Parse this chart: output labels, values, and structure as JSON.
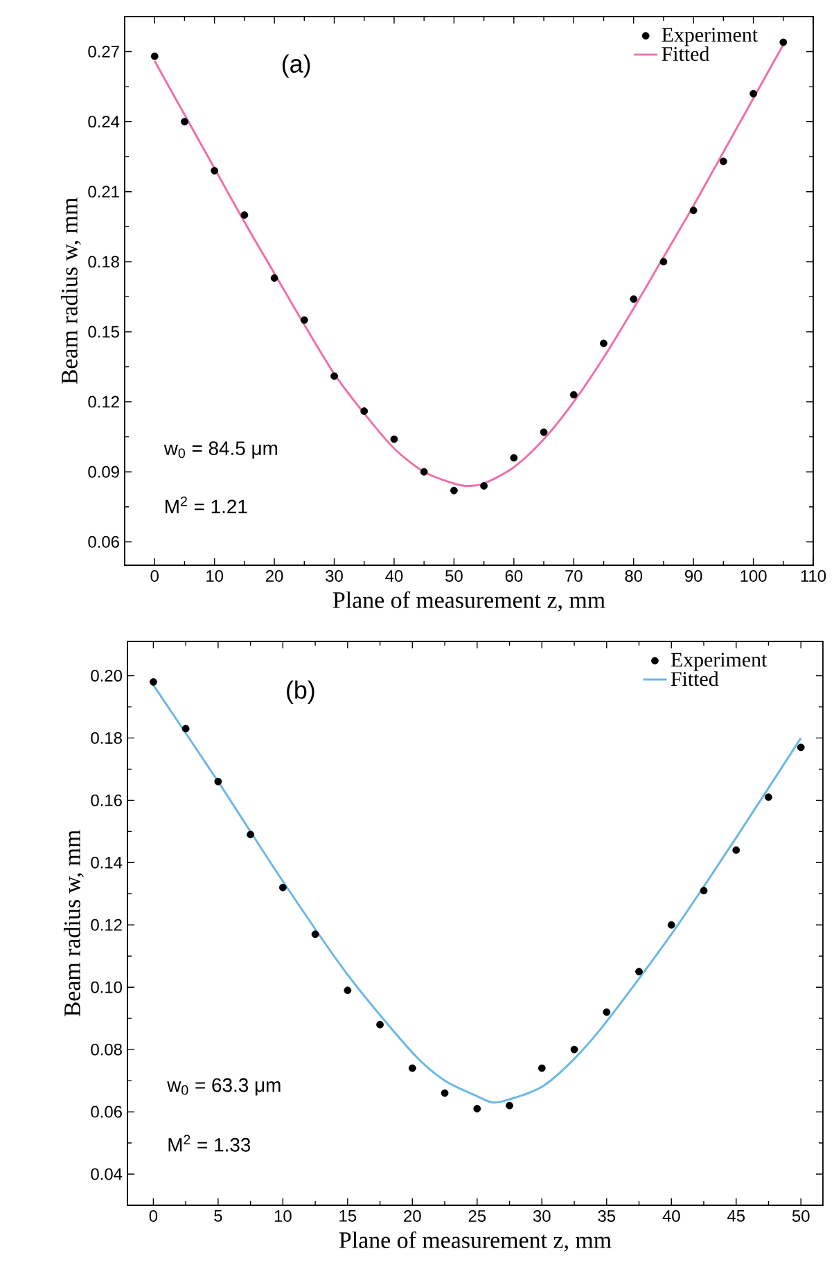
{
  "chart_data": [
    {
      "type": "scatter",
      "xlabel": "Plane of measurement  z, mm",
      "ylabel": "Beam radius w, mm",
      "xlim": [
        -5,
        110
      ],
      "ylim": [
        0.05,
        0.285
      ],
      "xticks": [
        0,
        10,
        20,
        30,
        40,
        50,
        60,
        70,
        80,
        90,
        100,
        110
      ],
      "yticks": [
        {
          "value": 0.06,
          "label": "0.06"
        },
        {
          "value": 0.09,
          "label": "0.09"
        },
        {
          "value": 0.12,
          "label": "0.12"
        },
        {
          "value": 0.15,
          "label": "0.15"
        },
        {
          "value": 0.18,
          "label": "0.18"
        },
        {
          "value": 0.21,
          "label": "0.21"
        },
        {
          "value": 0.24,
          "label": "0.24"
        },
        {
          "value": 0.27,
          "label": "0.27"
        }
      ],
      "legend": "top right",
      "annotations": [
        "(a)",
        "w$_{0}$ = 84.5 μm",
        "M$^{2}$ = 1.21"
      ],
      "series": [
        {
          "name": "Experiment",
          "type": "scatter",
          "marker": "circle",
          "color": "#000000",
          "x": [
            0,
            5,
            10,
            15,
            20,
            25,
            30,
            35,
            40,
            45,
            50,
            55,
            60,
            65,
            70,
            75,
            80,
            85,
            90,
            95,
            100,
            105
          ],
          "values": [
            0.268,
            0.24,
            0.219,
            0.2,
            0.173,
            0.155,
            0.131,
            0.116,
            0.104,
            0.09,
            0.082,
            0.084,
            0.096,
            0.107,
            0.123,
            0.145,
            0.164,
            0.18,
            0.202,
            0.223,
            0.252,
            0.274
          ]
        },
        {
          "name": "Fitted",
          "type": "line",
          "marker": "none",
          "color": "#ef6fab",
          "x": [
            0,
            5,
            10,
            15,
            20,
            25,
            30,
            35,
            40,
            45,
            50,
            52,
            55,
            60,
            65,
            70,
            75,
            80,
            85,
            90,
            95,
            100,
            105
          ],
          "values": [
            0.266,
            0.243,
            0.22,
            0.197,
            0.175,
            0.153,
            0.132,
            0.115,
            0.1,
            0.09,
            0.085,
            0.084,
            0.085,
            0.092,
            0.104,
            0.12,
            0.139,
            0.16,
            0.182,
            0.204,
            0.227,
            0.25,
            0.273
          ]
        }
      ]
    },
    {
      "type": "scatter",
      "xlabel": "Plane of measurement  z, mm",
      "ylabel": "Beam radius w, mm",
      "xlim": [
        -2,
        51.7
      ],
      "ylim": [
        0.03,
        0.211
      ],
      "xticks": [
        0,
        5,
        10,
        15,
        20,
        25,
        30,
        35,
        40,
        45,
        50
      ],
      "yticks": [
        {
          "value": 0.04,
          "label": "0.04"
        },
        {
          "value": 0.06,
          "label": "0.06"
        },
        {
          "value": 0.08,
          "label": "0.08"
        },
        {
          "value": 0.1,
          "label": "0.10"
        },
        {
          "value": 0.12,
          "label": "0.12"
        },
        {
          "value": 0.14,
          "label": "0.14"
        },
        {
          "value": 0.16,
          "label": "0.16"
        },
        {
          "value": 0.18,
          "label": "0.18"
        },
        {
          "value": 0.2,
          "label": "0.20"
        }
      ],
      "legend": "top right",
      "annotations": [
        "(b)",
        "w$_{0}$ = 63.3 μm",
        "M$^{2}$ = 1.33"
      ],
      "series": [
        {
          "name": "Experiment",
          "type": "scatter",
          "marker": "circle",
          "color": "#000000",
          "x": [
            0,
            2.5,
            5,
            7.5,
            10,
            12.5,
            15,
            17.5,
            20,
            22.5,
            25,
            27.5,
            30,
            32.5,
            35,
            37.5,
            40,
            42.5,
            45,
            47.5,
            50
          ],
          "values": [
            0.198,
            0.183,
            0.166,
            0.149,
            0.132,
            0.117,
            0.099,
            0.088,
            0.074,
            0.066,
            0.061,
            0.062,
            0.074,
            0.08,
            0.092,
            0.105,
            0.12,
            0.131,
            0.144,
            0.161,
            0.177
          ]
        },
        {
          "name": "Fitted",
          "type": "line",
          "marker": "none",
          "color": "#6ab8e6",
          "x": [
            0,
            5,
            10,
            15,
            20,
            22.5,
            25,
            26.2,
            27.5,
            30,
            32.5,
            35,
            40,
            45,
            50
          ],
          "values": [
            0.197,
            0.166,
            0.134,
            0.104,
            0.079,
            0.07,
            0.065,
            0.063,
            0.064,
            0.068,
            0.077,
            0.089,
            0.117,
            0.148,
            0.18
          ]
        }
      ]
    }
  ]
}
